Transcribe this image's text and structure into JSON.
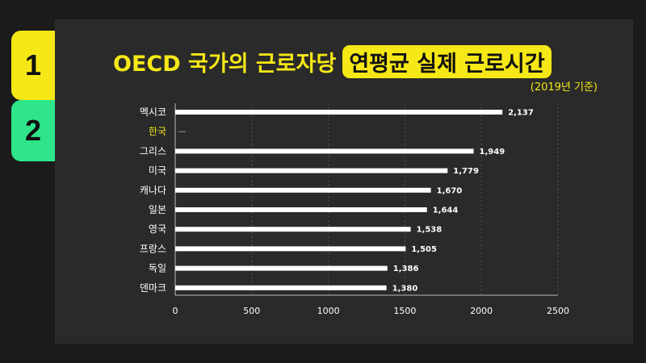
{
  "tabs": [
    {
      "label": "1",
      "color": "#f5e816"
    },
    {
      "label": "2",
      "color": "#2ee58a"
    }
  ],
  "chart_data": {
    "type": "bar",
    "orientation": "horizontal",
    "title_part1": "OECD 국가의 근로자당",
    "title_part2": "연평균 실제 근로시간",
    "subtitle": "(2019년 기준)",
    "categories": [
      "멕시코",
      "한국",
      "그리스",
      "미국",
      "캐나다",
      "일본",
      "영국",
      "프랑스",
      "독일",
      "덴마크"
    ],
    "values": [
      2137,
      null,
      1949,
      1779,
      1670,
      1644,
      1538,
      1505,
      1386,
      1380
    ],
    "value_labels": [
      "2,137",
      "",
      "1,949",
      "1,779",
      "1,670",
      "1,644",
      "1,538",
      "1,505",
      "1,386",
      "1,380"
    ],
    "highlight_category": "한국",
    "xlim": [
      0,
      2500
    ],
    "xticks": [
      0,
      500,
      1000,
      1500,
      2000,
      2500
    ],
    "grid": "vertical dashed",
    "colors": {
      "bar": "#ffffff",
      "highlight": "#f5e816",
      "accent": "#f5e816"
    }
  }
}
